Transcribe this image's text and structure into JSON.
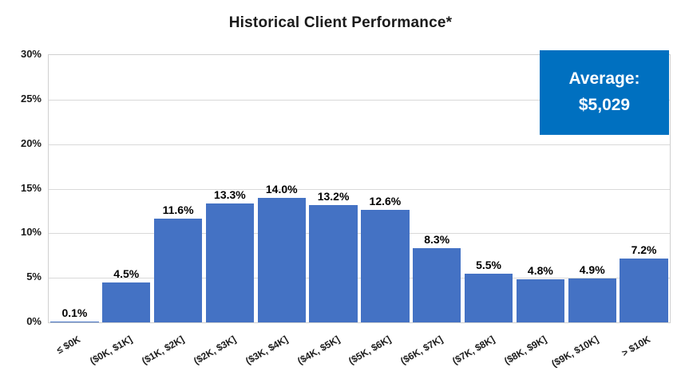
{
  "chart_data": {
    "type": "bar",
    "title": "Historical Client Performance*",
    "categories": [
      "≤ $0K",
      "($0K, $1K]",
      "($1K, $2K]",
      "($2K, $3K]",
      "($3K, $4K]",
      "($4K, $5K]",
      "($5K, $6K]",
      "($6K, $7K]",
      "($7K, $8K]",
      "($8K, $9K]",
      "($9K, $10K]",
      "> $10K"
    ],
    "values": [
      0.1,
      4.5,
      11.6,
      13.3,
      14.0,
      13.2,
      12.6,
      8.3,
      5.5,
      4.8,
      4.9,
      7.2
    ],
    "data_labels": [
      "0.1%",
      "4.5%",
      "11.6%",
      "13.3%",
      "14.0%",
      "13.2%",
      "12.6%",
      "8.3%",
      "5.5%",
      "4.8%",
      "4.9%",
      "7.2%"
    ],
    "xlabel": "",
    "ylabel": "",
    "ylim": [
      0,
      30
    ],
    "ytick_step": 5,
    "ytick_labels": [
      "0%",
      "5%",
      "10%",
      "15%",
      "20%",
      "25%",
      "30%"
    ],
    "grid": true,
    "legend": "none",
    "colors": {
      "bar": "#4472C4",
      "gridline": "#d9d9d9",
      "plot_border": "#d0d0d0",
      "text": "#1a1a1a"
    },
    "annotation": {
      "line1": "Average:",
      "line2": "$5,029",
      "bg_color": "#0070C0",
      "text_color": "#FFFFFF"
    }
  }
}
